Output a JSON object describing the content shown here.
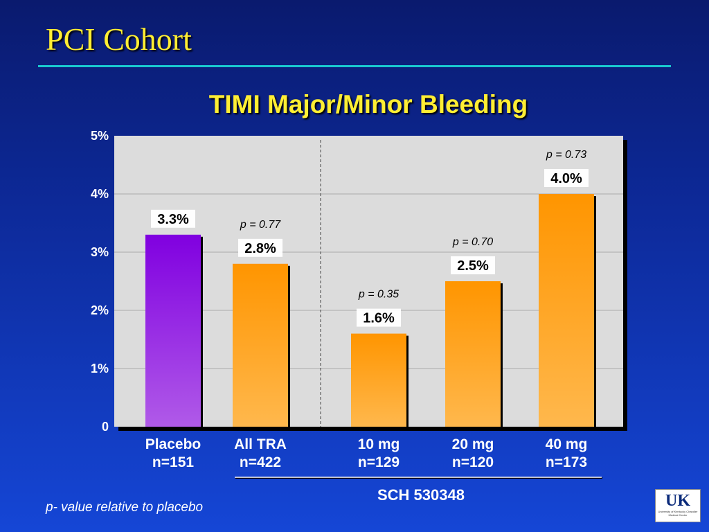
{
  "slide": {
    "title": "PCI Cohort",
    "footnote": "p- value relative to placebo"
  },
  "logo": {
    "mark": "UK",
    "subtext": "University of Kentucky Chandler Medical Center"
  },
  "chart_data": {
    "type": "bar",
    "title": "TIMI Major/Minor Bleeding",
    "ylim": [
      0,
      5
    ],
    "yticks": [
      "0",
      "1%",
      "2%",
      "3%",
      "4%",
      "5%"
    ],
    "grid": true,
    "categories": [
      {
        "line1": "Placebo",
        "line2": "n=151"
      },
      {
        "line1": "All TRA",
        "line2": "n=422"
      },
      {
        "line1": "10 mg",
        "line2": "n=129"
      },
      {
        "line1": "20 mg",
        "line2": "n=120"
      },
      {
        "line1": "40 mg",
        "line2": "n=173"
      }
    ],
    "values": [
      3.3,
      2.8,
      1.6,
      2.5,
      4.0
    ],
    "value_labels": [
      "3.3%",
      "2.8%",
      "1.6%",
      "2.5%",
      "4.0%"
    ],
    "p_values": [
      "",
      "p = 0.77",
      "p = 0.35",
      "p = 0.70",
      "p = 0.73"
    ],
    "group_label": "SCH 530348",
    "colors": {
      "placebo_top": "#8000e0",
      "placebo_bottom": "#b05ae8",
      "tra_top": "#ff9500",
      "tra_bottom": "#ffb84d",
      "plot_bg": "#dcdcdc"
    }
  }
}
